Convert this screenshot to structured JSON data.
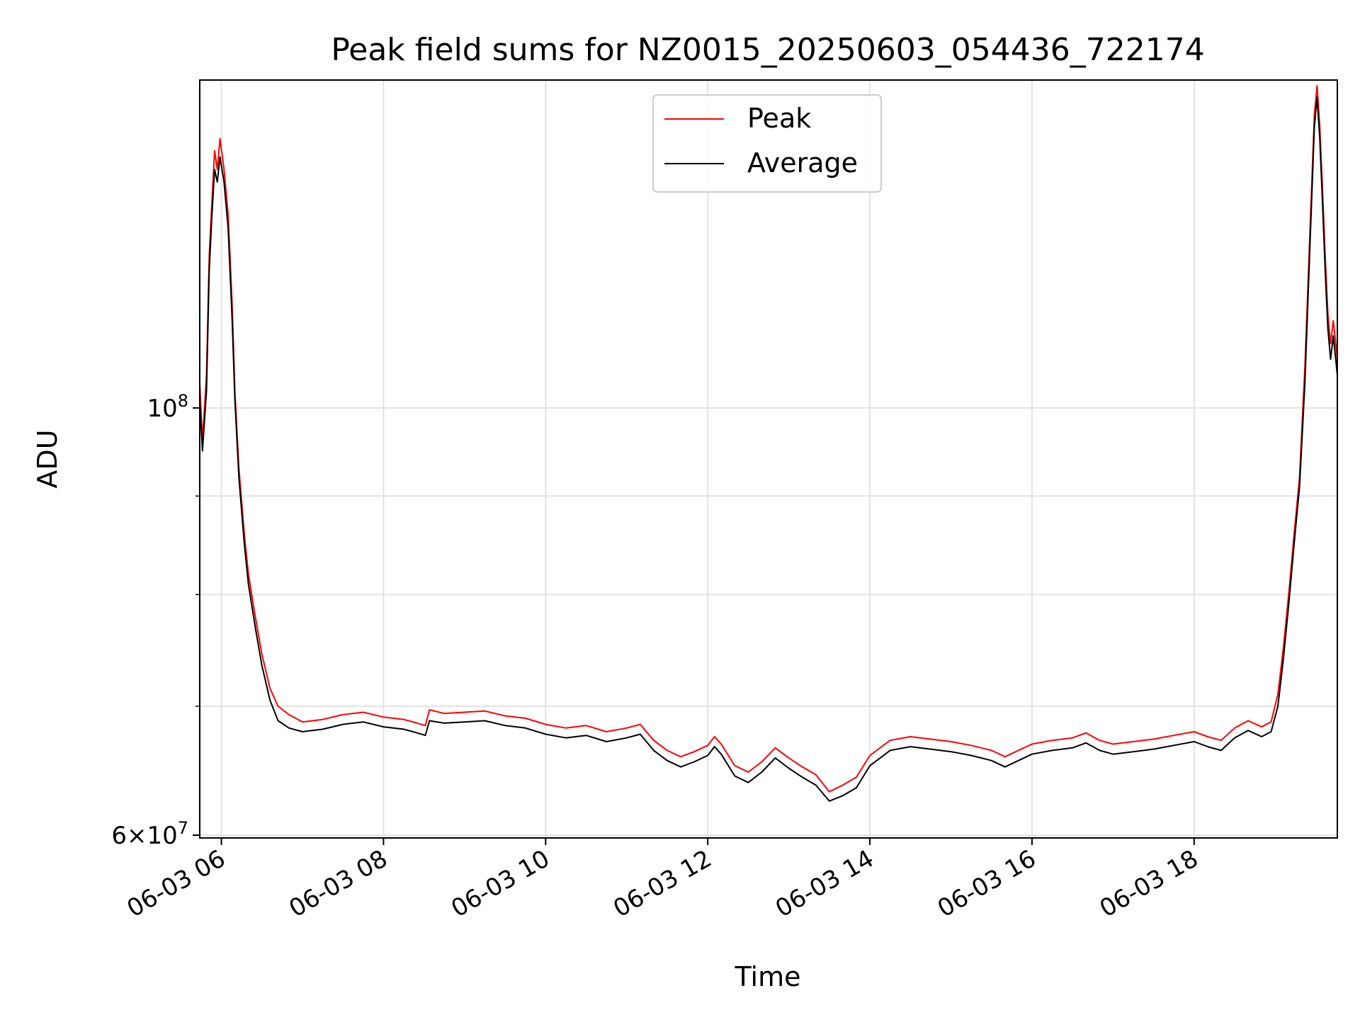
{
  "chart_data": {
    "type": "line",
    "title": "Peak field sums for NZ0015_20250603_054436_722174",
    "xlabel": "Time",
    "ylabel": "ADU",
    "x_scale": "time",
    "y_scale": "log",
    "xlim": [
      "06-03 05:44",
      "06-03 19:46"
    ],
    "ylim": [
      59800000,
      148000000
    ],
    "x_ticks": [
      "06-03 06",
      "06-03 08",
      "06-03 10",
      "06-03 12",
      "06-03 14",
      "06-03 16",
      "06-03 18"
    ],
    "y_tick_labels": [
      {
        "value": 100000000,
        "mantissa": "",
        "base": "10",
        "exp": "8"
      },
      {
        "value": 60000000,
        "mantissa": "6",
        "base": "10",
        "exp": "7"
      }
    ],
    "y_minor_ticks": [
      70000000,
      80000000,
      90000000
    ],
    "grid": true,
    "legend_position": "top-center",
    "series": [
      {
        "name": "Peak",
        "color": "#ff0000",
        "points": [
          [
            "06-03 05:44",
            103000000
          ],
          [
            "06-03 05:46",
            96000000
          ],
          [
            "06-03 05:49",
            104000000
          ],
          [
            "06-03 05:51",
            120000000
          ],
          [
            "06-03 05:53",
            128000000
          ],
          [
            "06-03 05:55",
            136000000
          ],
          [
            "06-03 05:57",
            133000000
          ],
          [
            "06-03 05:59",
            138000000
          ],
          [
            "06-03 06:02",
            133000000
          ],
          [
            "06-03 06:05",
            126000000
          ],
          [
            "06-03 06:08",
            113000000
          ],
          [
            "06-03 06:10",
            102000000
          ],
          [
            "06-03 06:13",
            93000000
          ],
          [
            "06-03 06:17",
            86000000
          ],
          [
            "06-03 06:20",
            82000000
          ],
          [
            "06-03 06:25",
            78000000
          ],
          [
            "06-03 06:30",
            74500000
          ],
          [
            "06-03 06:36",
            71500000
          ],
          [
            "06-03 06:42",
            70000000
          ],
          [
            "06-03 06:50",
            69300000
          ],
          [
            "06-03 07:00",
            68700000
          ],
          [
            "06-03 07:15",
            68900000
          ],
          [
            "06-03 07:30",
            69300000
          ],
          [
            "06-03 07:45",
            69500000
          ],
          [
            "06-03 08:00",
            69100000
          ],
          [
            "06-03 08:15",
            68900000
          ],
          [
            "06-03 08:25",
            68600000
          ],
          [
            "06-03 08:31",
            68400000
          ],
          [
            "06-03 08:34",
            69700000
          ],
          [
            "06-03 08:45",
            69400000
          ],
          [
            "06-03 09:00",
            69500000
          ],
          [
            "06-03 09:15",
            69600000
          ],
          [
            "06-03 09:30",
            69200000
          ],
          [
            "06-03 09:45",
            69000000
          ],
          [
            "06-03 10:00",
            68500000
          ],
          [
            "06-03 10:15",
            68200000
          ],
          [
            "06-03 10:30",
            68400000
          ],
          [
            "06-03 10:45",
            67900000
          ],
          [
            "06-03 11:00",
            68200000
          ],
          [
            "06-03 11:10",
            68500000
          ],
          [
            "06-03 11:20",
            67200000
          ],
          [
            "06-03 11:30",
            66400000
          ],
          [
            "06-03 11:40",
            65900000
          ],
          [
            "06-03 11:50",
            66300000
          ],
          [
            "06-03 12:00",
            66800000
          ],
          [
            "06-03 12:05",
            67500000
          ],
          [
            "06-03 12:10",
            66900000
          ],
          [
            "06-03 12:20",
            65200000
          ],
          [
            "06-03 12:30",
            64700000
          ],
          [
            "06-03 12:40",
            65500000
          ],
          [
            "06-03 12:50",
            66600000
          ],
          [
            "06-03 13:00",
            65800000
          ],
          [
            "06-03 13:10",
            65100000
          ],
          [
            "06-03 13:20",
            64500000
          ],
          [
            "06-03 13:30",
            63200000
          ],
          [
            "06-03 13:40",
            63700000
          ],
          [
            "06-03 13:50",
            64300000
          ],
          [
            "06-03 14:00",
            66000000
          ],
          [
            "06-03 14:15",
            67200000
          ],
          [
            "06-03 14:30",
            67500000
          ],
          [
            "06-03 14:45",
            67300000
          ],
          [
            "06-03 15:00",
            67100000
          ],
          [
            "06-03 15:15",
            66800000
          ],
          [
            "06-03 15:30",
            66400000
          ],
          [
            "06-03 15:40",
            65900000
          ],
          [
            "06-03 15:50",
            66400000
          ],
          [
            "06-03 16:00",
            66900000
          ],
          [
            "06-03 16:15",
            67200000
          ],
          [
            "06-03 16:30",
            67400000
          ],
          [
            "06-03 16:40",
            67800000
          ],
          [
            "06-03 16:50",
            67200000
          ],
          [
            "06-03 17:00",
            66900000
          ],
          [
            "06-03 17:15",
            67100000
          ],
          [
            "06-03 17:30",
            67300000
          ],
          [
            "06-03 17:45",
            67600000
          ],
          [
            "06-03 18:00",
            67900000
          ],
          [
            "06-03 18:10",
            67500000
          ],
          [
            "06-03 18:20",
            67200000
          ],
          [
            "06-03 18:30",
            68200000
          ],
          [
            "06-03 18:40",
            68800000
          ],
          [
            "06-03 18:50",
            68300000
          ],
          [
            "06-03 18:57",
            68700000
          ],
          [
            "06-03 19:02",
            71000000
          ],
          [
            "06-03 19:06",
            75000000
          ],
          [
            "06-03 19:10",
            80000000
          ],
          [
            "06-03 19:14",
            86000000
          ],
          [
            "06-03 19:18",
            92000000
          ],
          [
            "06-03 19:22",
            105000000
          ],
          [
            "06-03 19:26",
            125000000
          ],
          [
            "06-03 19:29",
            142000000
          ],
          [
            "06-03 19:31",
            147000000
          ],
          [
            "06-03 19:33",
            140000000
          ],
          [
            "06-03 19:35",
            130000000
          ],
          [
            "06-03 19:37",
            120000000
          ],
          [
            "06-03 19:39",
            112000000
          ],
          [
            "06-03 19:41",
            108000000
          ],
          [
            "06-03 19:43",
            111000000
          ],
          [
            "06-03 19:46",
            106000000
          ]
        ]
      },
      {
        "name": "Average",
        "color": "#000000",
        "points": [
          [
            "06-03 05:44",
            101000000
          ],
          [
            "06-03 05:46",
            95000000
          ],
          [
            "06-03 05:49",
            102000000
          ],
          [
            "06-03 05:51",
            118000000
          ],
          [
            "06-03 05:53",
            126000000
          ],
          [
            "06-03 05:55",
            133000000
          ],
          [
            "06-03 05:57",
            131000000
          ],
          [
            "06-03 05:59",
            135000000
          ],
          [
            "06-03 06:02",
            131000000
          ],
          [
            "06-03 06:05",
            124000000
          ],
          [
            "06-03 06:08",
            111000000
          ],
          [
            "06-03 06:10",
            101000000
          ],
          [
            "06-03 06:13",
            92000000
          ],
          [
            "06-03 06:17",
            85000000
          ],
          [
            "06-03 06:20",
            81000000
          ],
          [
            "06-03 06:25",
            77000000
          ],
          [
            "06-03 06:30",
            73500000
          ],
          [
            "06-03 06:36",
            70500000
          ],
          [
            "06-03 06:42",
            68800000
          ],
          [
            "06-03 06:50",
            68200000
          ],
          [
            "06-03 07:00",
            67900000
          ],
          [
            "06-03 07:15",
            68100000
          ],
          [
            "06-03 07:30",
            68500000
          ],
          [
            "06-03 07:45",
            68700000
          ],
          [
            "06-03 08:00",
            68300000
          ],
          [
            "06-03 08:15",
            68100000
          ],
          [
            "06-03 08:25",
            67800000
          ],
          [
            "06-03 08:31",
            67600000
          ],
          [
            "06-03 08:34",
            68800000
          ],
          [
            "06-03 08:45",
            68600000
          ],
          [
            "06-03 09:00",
            68700000
          ],
          [
            "06-03 09:15",
            68800000
          ],
          [
            "06-03 09:30",
            68400000
          ],
          [
            "06-03 09:45",
            68200000
          ],
          [
            "06-03 10:00",
            67700000
          ],
          [
            "06-03 10:15",
            67400000
          ],
          [
            "06-03 10:30",
            67600000
          ],
          [
            "06-03 10:45",
            67100000
          ],
          [
            "06-03 11:00",
            67400000
          ],
          [
            "06-03 11:10",
            67700000
          ],
          [
            "06-03 11:20",
            66400000
          ],
          [
            "06-03 11:30",
            65600000
          ],
          [
            "06-03 11:40",
            65100000
          ],
          [
            "06-03 11:50",
            65500000
          ],
          [
            "06-03 12:00",
            66000000
          ],
          [
            "06-03 12:05",
            66700000
          ],
          [
            "06-03 12:10",
            66100000
          ],
          [
            "06-03 12:20",
            64400000
          ],
          [
            "06-03 12:30",
            63900000
          ],
          [
            "06-03 12:40",
            64700000
          ],
          [
            "06-03 12:50",
            65800000
          ],
          [
            "06-03 13:00",
            65000000
          ],
          [
            "06-03 13:10",
            64300000
          ],
          [
            "06-03 13:20",
            63700000
          ],
          [
            "06-03 13:30",
            62500000
          ],
          [
            "06-03 13:40",
            62900000
          ],
          [
            "06-03 13:50",
            63500000
          ],
          [
            "06-03 14:00",
            65200000
          ],
          [
            "06-03 14:15",
            66400000
          ],
          [
            "06-03 14:30",
            66700000
          ],
          [
            "06-03 14:45",
            66500000
          ],
          [
            "06-03 15:00",
            66300000
          ],
          [
            "06-03 15:15",
            66000000
          ],
          [
            "06-03 15:30",
            65600000
          ],
          [
            "06-03 15:40",
            65100000
          ],
          [
            "06-03 15:50",
            65600000
          ],
          [
            "06-03 16:00",
            66100000
          ],
          [
            "06-03 16:15",
            66400000
          ],
          [
            "06-03 16:30",
            66600000
          ],
          [
            "06-03 16:40",
            67000000
          ],
          [
            "06-03 16:50",
            66400000
          ],
          [
            "06-03 17:00",
            66100000
          ],
          [
            "06-03 17:15",
            66300000
          ],
          [
            "06-03 17:30",
            66500000
          ],
          [
            "06-03 17:45",
            66800000
          ],
          [
            "06-03 18:00",
            67100000
          ],
          [
            "06-03 18:10",
            66700000
          ],
          [
            "06-03 18:20",
            66400000
          ],
          [
            "06-03 18:30",
            67400000
          ],
          [
            "06-03 18:40",
            68000000
          ],
          [
            "06-03 18:50",
            67500000
          ],
          [
            "06-03 18:57",
            67900000
          ],
          [
            "06-03 19:02",
            70000000
          ],
          [
            "06-03 19:06",
            74000000
          ],
          [
            "06-03 19:10",
            79000000
          ],
          [
            "06-03 19:14",
            85000000
          ],
          [
            "06-03 19:18",
            91000000
          ],
          [
            "06-03 19:22",
            103000000
          ],
          [
            "06-03 19:26",
            123000000
          ],
          [
            "06-03 19:29",
            140000000
          ],
          [
            "06-03 19:31",
            145000000
          ],
          [
            "06-03 19:33",
            138000000
          ],
          [
            "06-03 19:35",
            128000000
          ],
          [
            "06-03 19:37",
            118000000
          ],
          [
            "06-03 19:39",
            110000000
          ],
          [
            "06-03 19:41",
            106000000
          ],
          [
            "06-03 19:43",
            109000000
          ],
          [
            "06-03 19:46",
            104000000
          ]
        ]
      }
    ]
  }
}
